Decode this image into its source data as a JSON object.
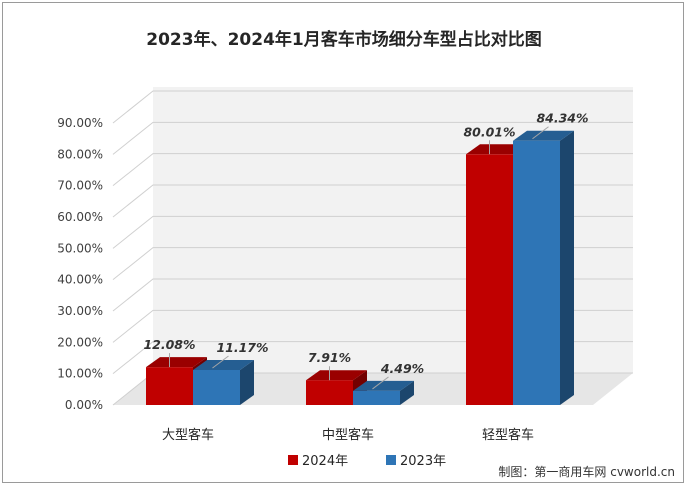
{
  "chart_data": {
    "type": "bar",
    "title": "2023年、2024年1月客车市场细分车型占比对比图",
    "categories": [
      "大型客车",
      "中型客车",
      "轻型客车"
    ],
    "series": [
      {
        "name": "2024年",
        "values": [
          12.08,
          7.91,
          80.01
        ],
        "labels": [
          "12.08%",
          "7.91%",
          "80.01%"
        ],
        "color": "#c00000"
      },
      {
        "name": "2023年",
        "values": [
          11.17,
          4.49,
          84.34
        ],
        "labels": [
          "11.17%",
          "4.49%",
          "84.34%"
        ],
        "color": "#2e75b6"
      }
    ],
    "yticks": [
      "0.00%",
      "10.00%",
      "20.00%",
      "30.00%",
      "40.00%",
      "50.00%",
      "60.00%",
      "70.00%",
      "80.00%",
      "90.00%"
    ],
    "ylim": [
      0,
      90
    ],
    "grid": true,
    "legend_position": "bottom",
    "style": "3d-clustered-column"
  },
  "credit": "制图：第一商用车网 cvworld.cn"
}
